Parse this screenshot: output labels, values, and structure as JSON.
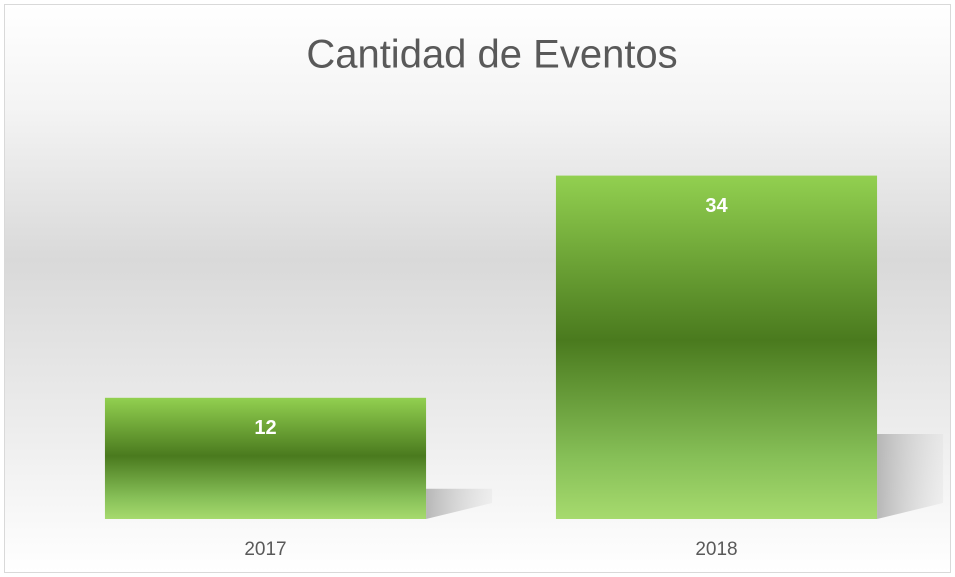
{
  "chart_data": {
    "type": "bar",
    "title": "Cantidad de Eventos",
    "categories": [
      "2017",
      "2018"
    ],
    "values": [
      12,
      34
    ],
    "color": "#92d050",
    "ylim": [
      0,
      40
    ],
    "grid": false
  }
}
